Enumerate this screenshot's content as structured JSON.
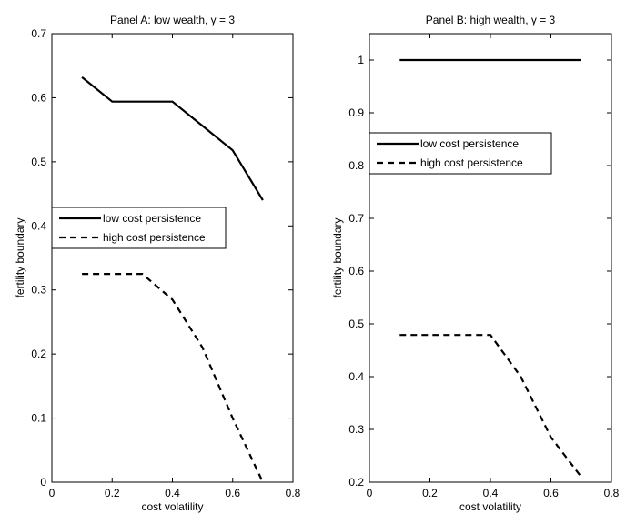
{
  "chart_data": [
    {
      "type": "line",
      "title": "Panel A: low wealth, γ = 3",
      "xlabel": "cost volatility",
      "ylabel": "fertility boundary",
      "xlim": [
        0,
        0.8
      ],
      "ylim": [
        0,
        0.7
      ],
      "xticks": [
        "0",
        "0.2",
        "0.4",
        "0.6",
        "0.8"
      ],
      "yticks": [
        "0",
        "0.1",
        "0.2",
        "0.3",
        "0.4",
        "0.5",
        "0.6",
        "0.7"
      ],
      "grid": false,
      "legend_position": "center-left",
      "series": [
        {
          "name": "low cost persistence",
          "style": "solid",
          "x": [
            0.1,
            0.2,
            0.3,
            0.4,
            0.5,
            0.6,
            0.7
          ],
          "y": [
            0.632,
            0.594,
            0.594,
            0.594,
            0.556,
            0.518,
            0.44
          ]
        },
        {
          "name": "high  cost persistence",
          "style": "dashed",
          "x": [
            0.1,
            0.2,
            0.3,
            0.4,
            0.5,
            0.6,
            0.7
          ],
          "y": [
            0.325,
            0.325,
            0.325,
            0.285,
            0.21,
            0.1,
            0.0
          ]
        }
      ]
    },
    {
      "type": "line",
      "title": "Panel B: high wealth, γ = 3",
      "xlabel": "cost volatility",
      "ylabel": "fertility boundary",
      "xlim": [
        0,
        0.8
      ],
      "ylim": [
        0.2,
        1.05
      ],
      "xticks": [
        "0",
        "0.2",
        "0.4",
        "0.6",
        "0.8"
      ],
      "yticks": [
        "0.2",
        "0.3",
        "0.4",
        "0.5",
        "0.6",
        "0.7",
        "0.8",
        "0.9",
        "1"
      ],
      "grid": false,
      "legend_position": "upper-left",
      "series": [
        {
          "name": "low cost persistence",
          "style": "solid",
          "x": [
            0.1,
            0.2,
            0.3,
            0.4,
            0.5,
            0.6,
            0.7
          ],
          "y": [
            1.0,
            1.0,
            1.0,
            1.0,
            1.0,
            1.0,
            1.0
          ]
        },
        {
          "name": "high  cost persistence",
          "style": "dashed",
          "x": [
            0.1,
            0.2,
            0.3,
            0.4,
            0.5,
            0.6,
            0.7
          ],
          "y": [
            0.479,
            0.479,
            0.479,
            0.479,
            0.4,
            0.285,
            0.21
          ]
        }
      ]
    }
  ]
}
